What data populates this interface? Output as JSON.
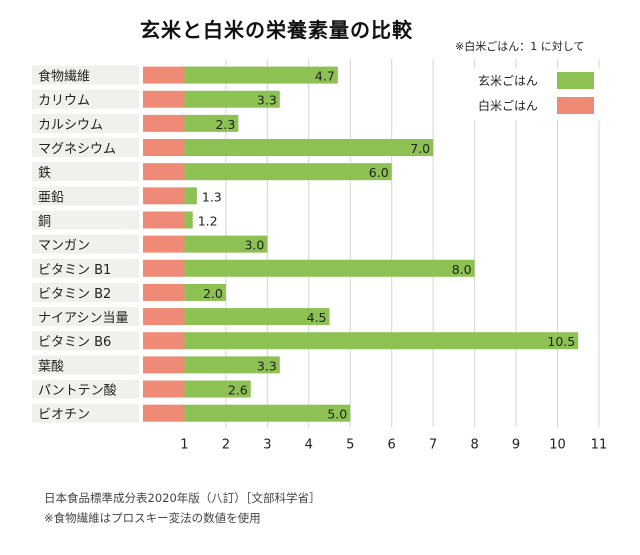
{
  "chart_data": {
    "type": "bar",
    "title": "玄米と白米の栄養素量の比較",
    "note": "※白米ごはん：1 に対して",
    "categories": [
      "食物繊維",
      "カリウム",
      "カルシウム",
      "マグネシウム",
      "鉄",
      "亜鉛",
      "銅",
      "マンガン",
      "ビタミン B1",
      "ビタミン B2",
      "ナイアシン当量",
      "ビタミン B6",
      "葉酸",
      "パントテン酸",
      "ビオチン"
    ],
    "series": [
      {
        "name": "玄米ごはん",
        "color": "#8dc153",
        "values": [
          4.7,
          3.3,
          2.3,
          7.0,
          6.0,
          1.3,
          1.2,
          3.0,
          8.0,
          2.0,
          4.5,
          10.5,
          3.3,
          2.6,
          5.0
        ]
      },
      {
        "name": "白米ごはん",
        "color": "#ee8a76",
        "values": [
          1,
          1,
          1,
          1,
          1,
          1,
          1,
          1,
          1,
          1,
          1,
          1,
          1,
          1,
          1
        ]
      }
    ],
    "data_labels": [
      "4.7",
      "3.3",
      "2.3",
      "7.0",
      "6.0",
      "1.3",
      "1.2",
      "3.0",
      "8.0",
      "2.0",
      "4.5",
      "10.5",
      "3.3",
      "2.6",
      "5.0"
    ],
    "x_ticks": [
      "1",
      "2",
      "3",
      "4",
      "5",
      "6",
      "7",
      "8",
      "9",
      "10",
      "11"
    ],
    "xlim": [
      0,
      11
    ],
    "grid": true,
    "legend_position": "top-right"
  },
  "source": {
    "line1": "日本食品標準成分表2020年版（八訂）［文部科学省］",
    "line2": "※食物繊維はプロスキー変法の数値を使用"
  }
}
